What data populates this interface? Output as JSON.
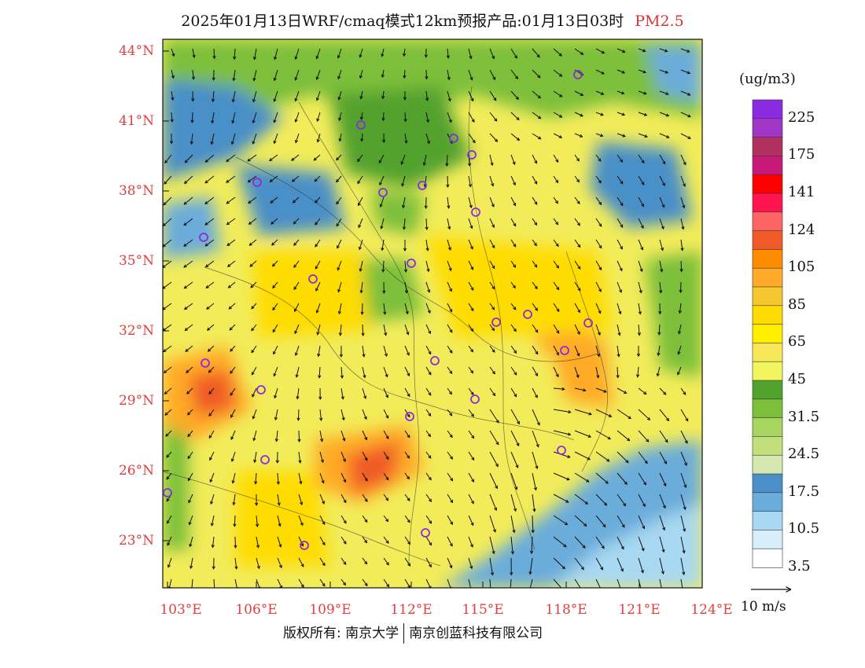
{
  "title": {
    "main": "2025年01月13日WRF/cmaq模式12km预报产品:01月13日03时",
    "species": "PM2.5"
  },
  "axes": {
    "lat_labels": [
      "44°N",
      "41°N",
      "38°N",
      "35°N",
      "32°N",
      "29°N",
      "26°N",
      "23°N"
    ],
    "lon_labels": [
      "103°E",
      "106°E",
      "109°E",
      "112°E",
      "115°E",
      "118°E",
      "121°E",
      "124°E"
    ]
  },
  "colorbar": {
    "units": "(ug/m3)",
    "labels": [
      "225",
      "175",
      "141",
      "124",
      "105",
      "85",
      "65",
      "45",
      "31.5",
      "24.5",
      "17.5",
      "10.5",
      "3.5"
    ],
    "colors": [
      "#8a2be2",
      "#a035c8",
      "#b03060",
      "#c8187a",
      "#ff0000",
      "#ff1450",
      "#ff6464",
      "#f05a28",
      "#ff8c00",
      "#ffaa28",
      "#f5c832",
      "#ffdc00",
      "#ffee00",
      "#f7e85a",
      "#f2f560",
      "#52a22e",
      "#7dbf3a",
      "#a8d560",
      "#c2e07a",
      "#d6e8b2",
      "#4a8fc8",
      "#6aacda",
      "#a8d8f2",
      "#d8eefa",
      "#ffffff"
    ]
  },
  "wind_legend": {
    "label": "10 m/s"
  },
  "footer": {
    "copyright": "版权所有: 南京大学",
    "company": "南京创蓝科技有限公司"
  }
}
